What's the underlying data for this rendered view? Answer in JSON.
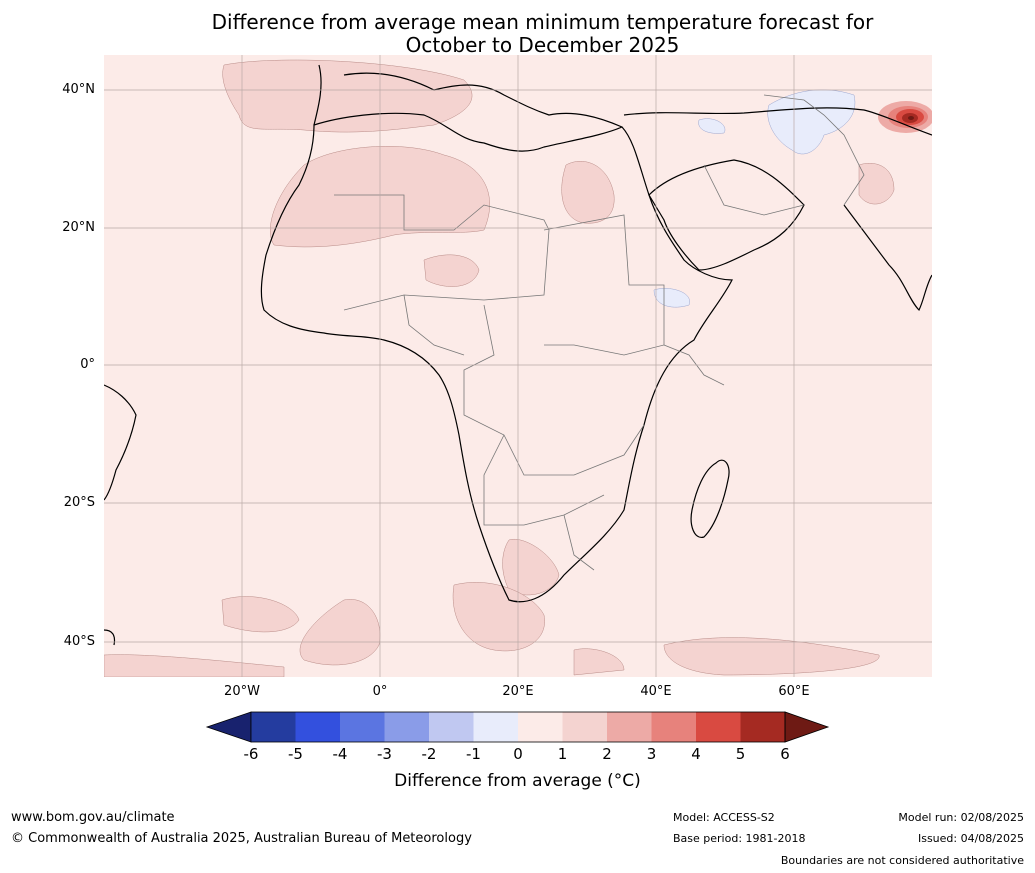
{
  "title": {
    "line1": "Difference from average mean minimum temperature forecast for",
    "line2": "October to December 2025"
  },
  "map": {
    "lat_labels": [
      "40°N",
      "20°N",
      "0°",
      "20°S",
      "40°S"
    ],
    "lon_labels": [
      "20°W",
      "0°",
      "20°E",
      "40°E",
      "60°E"
    ]
  },
  "colorbar": {
    "ticks": [
      "-6",
      "-5",
      "-4",
      "-3",
      "-2",
      "-1",
      "0",
      "1",
      "2",
      "3",
      "4",
      "5",
      "6"
    ],
    "colors": [
      "#243c9f",
      "#3350de",
      "#5b75e1",
      "#8a9ce8",
      "#c0c8f1",
      "#e8ecfb",
      "#fcebe8",
      "#f4d3d0",
      "#edaaa6",
      "#e7827c",
      "#d94a41",
      "#a52a22"
    ],
    "low_extreme_color": "#18226e",
    "high_extreme_color": "#6e1a14",
    "label": "Difference from average (°C)"
  },
  "footer": {
    "website": "www.bom.gov.au/climate",
    "copyright": "© Commonwealth of Australia 2025, Australian Bureau of Meteorology",
    "model": "Model: ACCESS-S2",
    "base_period": "Base period: 1981-2018",
    "model_run": "Model run: 02/08/2025",
    "issued": "Issued: 04/08/2025",
    "disclaimer": "Boundaries are not considered authoritative"
  }
}
